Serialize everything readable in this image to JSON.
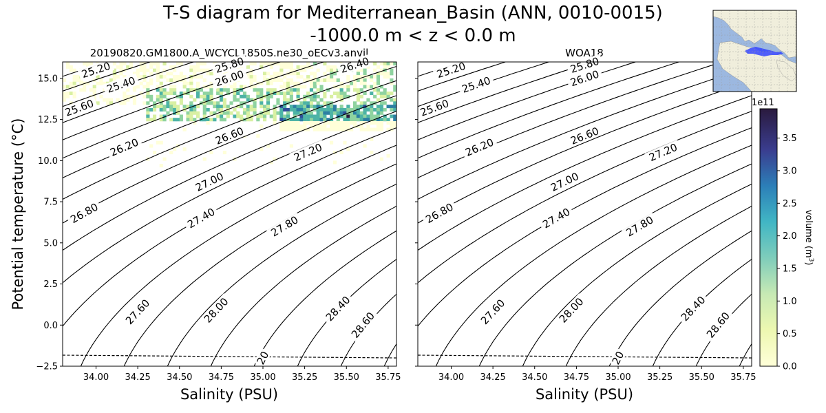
{
  "figure": {
    "title_line1": "T-S diagram for Mediterranean_Basin (ANN, 0010-0015)",
    "title_line2": "-1000.0 m < z < 0.0 m"
  },
  "chart_data": [
    {
      "type": "heatmap",
      "title": "20190820.GM1800.A_WCYCL1850S.ne30_oECv3.anvil",
      "xlabel": "Salinity (PSU)",
      "ylabel": "Potential temperature ($^\\circ$C)",
      "ylabel_display": "Potential temperature (°C)",
      "xlim": [
        33.8,
        35.8
      ],
      "ylim": [
        -2.5,
        16.0
      ],
      "xticks": [
        "34.00",
        "34.25",
        "34.50",
        "34.75",
        "35.00",
        "35.25",
        "35.50",
        "35.75"
      ],
      "yticks": [
        "−2.5",
        "0.0",
        "2.5",
        "5.0",
        "7.5",
        "10.0",
        "12.5",
        "15.0"
      ],
      "contour_labels": [
        "25.20",
        "25.40",
        "25.60",
        "25.80",
        "26.00",
        "26.20",
        "26.40",
        "26.60",
        "26.80",
        "27.00",
        "27.20",
        "27.40",
        "27.60",
        "27.80",
        "28.00",
        "28.40",
        "28.60",
        "20"
      ],
      "volume_regions": [
        {
          "s_range": [
            33.8,
            35.8
          ],
          "t_range": [
            13.3,
            16.0
          ],
          "level": "low"
        },
        {
          "s_range": [
            34.3,
            35.8
          ],
          "t_range": [
            12.5,
            14.2
          ],
          "level": "medium"
        },
        {
          "s_range": [
            35.1,
            35.8
          ],
          "t_range": [
            11.9,
            13.2
          ],
          "level": "high"
        }
      ],
      "freezing_line": true
    },
    {
      "type": "line",
      "title": "WOA18",
      "xlabel": "Salinity (PSU)",
      "xlim": [
        33.8,
        35.8
      ],
      "ylim": [
        -2.5,
        16.0
      ],
      "xticks": [
        "34.00",
        "34.25",
        "34.50",
        "34.75",
        "35.00",
        "35.25",
        "35.50",
        "35.75"
      ],
      "contour_labels": [
        "25.20",
        "25.40",
        "25.60",
        "25.80",
        "26.00",
        "26.20",
        "26.60",
        "26.80",
        "27.00",
        "27.20",
        "27.40",
        "27.60",
        "27.80",
        "28.00",
        "28.40",
        "28.60",
        "20"
      ],
      "freezing_line": true
    }
  ],
  "colorbar": {
    "label": "volume (m³)",
    "exponent": "1e11",
    "ticks": [
      "0.0",
      "0.5",
      "1.0",
      "1.5",
      "2.0",
      "2.5",
      "3.0",
      "3.5"
    ],
    "tick_values": [
      0.0,
      0.5,
      1.0,
      1.5,
      2.0,
      2.5,
      3.0,
      3.5
    ],
    "vmax": 3.95,
    "colors": [
      "#ffffd9",
      "#d9f0a3",
      "#8fd3a0",
      "#4db3a6",
      "#2c7fa3",
      "#2f4f99",
      "#35286b",
      "#2a1a3e"
    ]
  },
  "inset_map": {
    "ocean_color": "#9cb8e0",
    "land_color": "#f0eedc",
    "region_color": "#2c3cff"
  }
}
